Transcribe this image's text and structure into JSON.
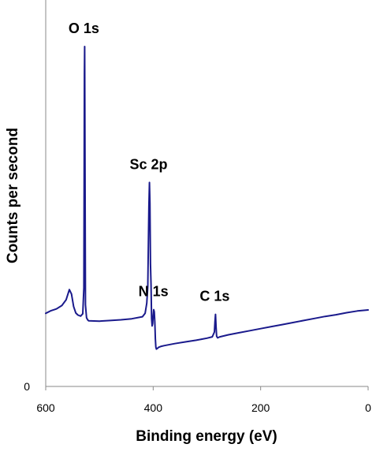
{
  "chart_data": {
    "type": "line",
    "title": "",
    "xlabel": "Binding energy (eV)",
    "ylabel": "Counts per second",
    "xlim": [
      600,
      0
    ],
    "ylim": [
      0,
      100
    ],
    "x_ticks": [
      "600",
      "400",
      "200",
      "0"
    ],
    "x_tick_values": [
      600,
      400,
      200,
      0
    ],
    "y_ticks": [
      "0"
    ],
    "y_tick_values": [
      0
    ],
    "grid": false,
    "legend": "none",
    "series": [
      {
        "color": "#1a1a8c",
        "x": [
          600,
          590,
          580,
          570,
          562,
          556,
          552,
          548,
          544,
          540,
          535,
          531,
          529,
          528,
          527.5,
          526,
          524,
          522,
          520,
          500,
          480,
          460,
          440,
          420,
          415,
          412,
          410,
          408,
          407,
          406,
          405,
          404,
          403,
          402,
          401,
          400,
          399,
          398,
          397,
          396,
          395,
          394,
          392,
          390,
          385,
          380,
          360,
          340,
          320,
          300,
          290,
          286,
          285,
          284,
          283,
          282,
          281,
          280,
          276,
          260,
          240,
          220,
          200,
          180,
          160,
          140,
          120,
          100,
          80,
          60,
          40,
          20,
          0
        ],
        "y": [
          21.5,
          22.3,
          22.8,
          23.8,
          25.5,
          28.5,
          27.2,
          23.5,
          21.6,
          21.0,
          20.7,
          21.4,
          29.0,
          92.0,
          100.0,
          24.0,
          20.2,
          19.6,
          19.3,
          19.2,
          19.4,
          19.6,
          19.9,
          20.5,
          21.5,
          24.5,
          29.5,
          53.0,
          60.0,
          54.0,
          36.0,
          30.0,
          20.0,
          17.8,
          18.5,
          20.8,
          22.6,
          22.0,
          19.0,
          14.0,
          11.6,
          11.0,
          11.2,
          11.5,
          11.8,
          12.0,
          12.6,
          13.1,
          13.6,
          14.2,
          14.6,
          16.0,
          19.0,
          21.2,
          17.5,
          14.8,
          14.5,
          14.3,
          14.6,
          15.2,
          15.8,
          16.4,
          17.0,
          17.6,
          18.2,
          18.8,
          19.4,
          20.0,
          20.6,
          21.1,
          21.7,
          22.2,
          22.5
        ]
      }
    ],
    "annotations": [
      {
        "text": "O 1s",
        "x": 527.5
      },
      {
        "text": "Sc 2p",
        "x": 407
      },
      {
        "text": "N 1s",
        "x": 398
      },
      {
        "text": "C 1s",
        "x": 284
      }
    ]
  }
}
